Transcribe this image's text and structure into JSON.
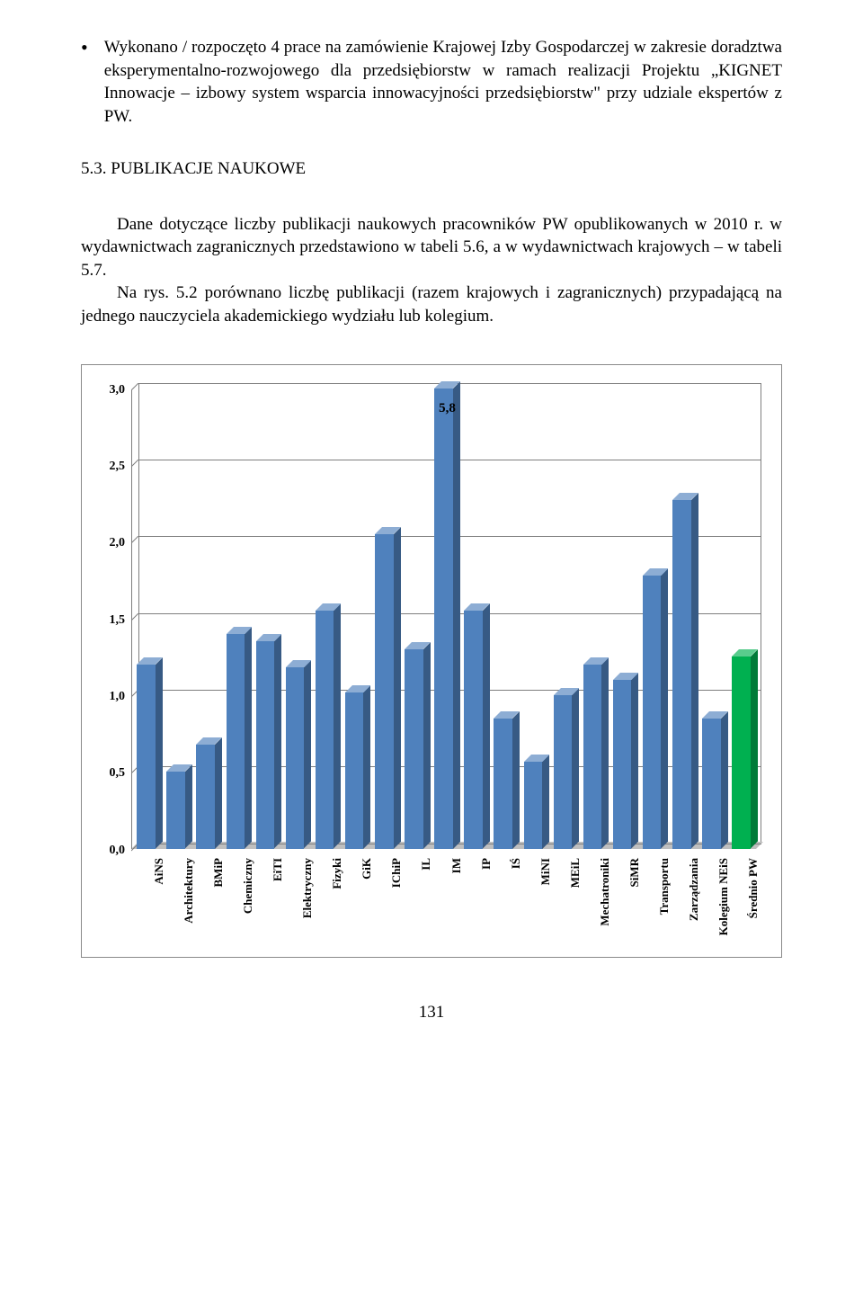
{
  "bullet_text": "Wykonano / rozpoczęto 4 prace na zamówienie Krajowej Izby Gospodarczej w zakresie doradztwa eksperymentalno-rozwojowego dla przedsiębiorstw w ramach realizacji Projektu „KIGNET Innowacje – izbowy system wsparcia innowacyjności przedsiębiorstw\" przy udziale ekspertów z PW.",
  "heading": "5.3. PUBLIKACJE NAUKOWE",
  "para1": "Dane dotyczące liczby publikacji naukowych pracowników PW opublikowanych w 2010 r. w wydawnictwach zagranicznych przedstawiono w tabeli 5.6, a w wydawnictwach krajowych – w tabeli 5.7.",
  "para2": "Na rys. 5.2 porównano liczbę publikacji (razem krajowych i zagranicznych) przypadającą na jednego nauczyciela akademickiego wydziału lub kolegium.",
  "page_number": "131",
  "chart": {
    "ymax": 3.0,
    "yticks": [
      0.0,
      0.5,
      1.0,
      1.5,
      2.0,
      2.5,
      3.0
    ],
    "ytick_labels": [
      "0,0",
      "0,5",
      "1,0",
      "1,5",
      "2,0",
      "2,5",
      "3,0"
    ],
    "grid_color": "#7f7f7f",
    "floor_color": "#bfbfbf",
    "background": "#ffffff",
    "tick_fontsize": 14,
    "x_fontsize": 13,
    "bar_depth": 8,
    "overflow_label": {
      "text": "5,8",
      "category_index": 10
    },
    "categories": [
      {
        "label": "AiNS",
        "value": 1.2,
        "color": "#4f81bd"
      },
      {
        "label": "Architektury",
        "value": 0.5,
        "color": "#4f81bd"
      },
      {
        "label": "BMiP",
        "value": 0.68,
        "color": "#4f81bd"
      },
      {
        "label": "Chemiczny",
        "value": 1.4,
        "color": "#4f81bd"
      },
      {
        "label": "EiTI",
        "value": 1.35,
        "color": "#4f81bd"
      },
      {
        "label": "Elektryczny",
        "value": 1.18,
        "color": "#4f81bd"
      },
      {
        "label": "Fizyki",
        "value": 1.55,
        "color": "#4f81bd"
      },
      {
        "label": "GiK",
        "value": 1.02,
        "color": "#4f81bd"
      },
      {
        "label": "IChiP",
        "value": 2.05,
        "color": "#4f81bd"
      },
      {
        "label": "IL",
        "value": 1.3,
        "color": "#4f81bd"
      },
      {
        "label": "IM",
        "value": 3.0,
        "color": "#4f81bd"
      },
      {
        "label": "IP",
        "value": 1.55,
        "color": "#4f81bd"
      },
      {
        "label": "IŚ",
        "value": 0.85,
        "color": "#4f81bd"
      },
      {
        "label": "MiNI",
        "value": 0.57,
        "color": "#4f81bd"
      },
      {
        "label": "MEiL",
        "value": 1.0,
        "color": "#4f81bd"
      },
      {
        "label": "Mechatroniki",
        "value": 1.2,
        "color": "#4f81bd"
      },
      {
        "label": "SiMR",
        "value": 1.1,
        "color": "#4f81bd"
      },
      {
        "label": "Transportu",
        "value": 1.78,
        "color": "#4f81bd"
      },
      {
        "label": "Zarządzania",
        "value": 2.27,
        "color": "#4f81bd"
      },
      {
        "label": "Kolegium NEiS",
        "value": 0.85,
        "color": "#4f81bd"
      },
      {
        "label": "Średnio PW",
        "value": 1.25,
        "color": "#00b050"
      }
    ]
  }
}
